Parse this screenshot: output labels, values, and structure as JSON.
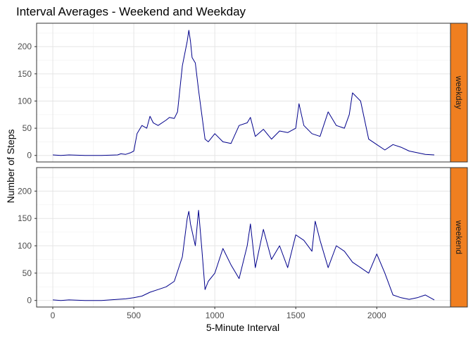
{
  "chart_data": {
    "type": "line",
    "title": "Interval Averages - Weekend and Weekday",
    "xlabel": "5-Minute Interval",
    "ylabel": "Number of Steps",
    "xlim": [
      -100,
      2455
    ],
    "ylim": [
      -12,
      243
    ],
    "x_ticks": [
      0,
      500,
      1000,
      1500,
      2000
    ],
    "y_ticks": [
      0,
      50,
      100,
      150,
      200
    ],
    "grid": true,
    "line_color": "#00008b",
    "strip_color": "#f07f20",
    "facets": [
      {
        "label": "weekday",
        "series": {
          "x": [
            0,
            50,
            100,
            200,
            300,
            400,
            420,
            450,
            480,
            500,
            520,
            550,
            580,
            600,
            620,
            650,
            700,
            720,
            750,
            770,
            800,
            830,
            840,
            850,
            860,
            880,
            900,
            920,
            940,
            960,
            1000,
            1050,
            1100,
            1150,
            1200,
            1220,
            1250,
            1300,
            1350,
            1400,
            1450,
            1500,
            1520,
            1550,
            1600,
            1650,
            1700,
            1750,
            1800,
            1830,
            1850,
            1900,
            1950,
            2000,
            2050,
            2100,
            2150,
            2200,
            2250,
            2300,
            2355
          ],
          "y": [
            1,
            0,
            1,
            0,
            0,
            1,
            3,
            2,
            5,
            8,
            40,
            55,
            50,
            72,
            60,
            55,
            65,
            70,
            68,
            80,
            165,
            210,
            230,
            210,
            180,
            170,
            120,
            75,
            30,
            25,
            40,
            25,
            22,
            55,
            60,
            70,
            35,
            48,
            30,
            45,
            42,
            50,
            95,
            55,
            40,
            35,
            80,
            55,
            50,
            75,
            115,
            100,
            30,
            20,
            10,
            20,
            15,
            8,
            5,
            2,
            1
          ]
        }
      },
      {
        "label": "weekend",
        "series": {
          "x": [
            0,
            50,
            100,
            200,
            300,
            400,
            450,
            500,
            550,
            600,
            650,
            700,
            750,
            800,
            830,
            840,
            850,
            880,
            900,
            920,
            940,
            960,
            1000,
            1050,
            1100,
            1150,
            1200,
            1220,
            1250,
            1300,
            1350,
            1400,
            1450,
            1500,
            1550,
            1600,
            1620,
            1650,
            1700,
            1750,
            1800,
            1850,
            1900,
            1950,
            2000,
            2050,
            2100,
            2150,
            2200,
            2250,
            2300,
            2355
          ],
          "y": [
            1,
            0,
            1,
            0,
            0,
            2,
            3,
            5,
            8,
            15,
            20,
            25,
            35,
            80,
            150,
            163,
            140,
            100,
            165,
            95,
            20,
            35,
            50,
            95,
            65,
            40,
            100,
            140,
            60,
            130,
            75,
            100,
            60,
            120,
            110,
            90,
            145,
            110,
            60,
            100,
            90,
            70,
            60,
            50,
            85,
            50,
            10,
            5,
            2,
            5,
            10,
            1
          ]
        }
      }
    ]
  }
}
